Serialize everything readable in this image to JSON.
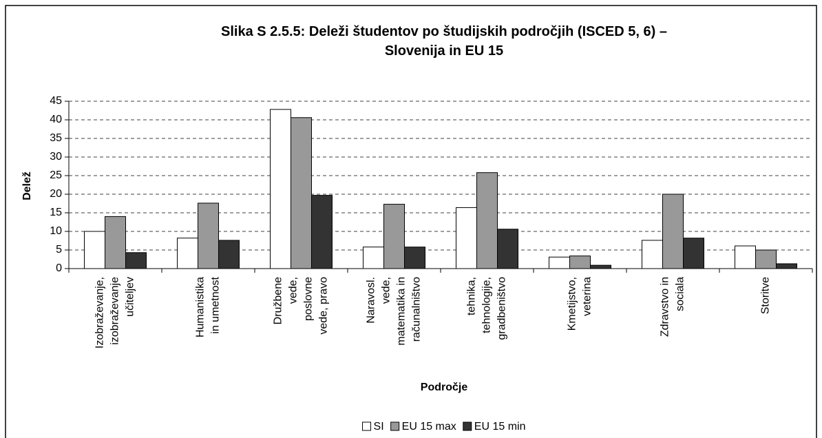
{
  "chart_data": {
    "type": "bar",
    "title": "Slika S 2.5.5: Deleži študentov po študijskih področjih (ISCED 5, 6) –\nSlovenija in EU 15",
    "x_label": "Področje",
    "y_label": "Delež",
    "categories": [
      "Izobraževanje,\nizobraževanje\nučiteljev",
      "Humanistika\nin umetnost",
      "Družbene\nvede,\nposlovne\nvede, pravo",
      "Naravosl.\nvede,\nmatematika in\nračunalništvo",
      "tehnika,\ntehnologije,\ngradbeništvo",
      "Kmetijstvo,\nveterina",
      "Zdravstvo in\nsociala",
      "Storitve"
    ],
    "series": [
      {
        "name": "SI",
        "color": "#ffffff",
        "values": [
          10,
          8.2,
          42.8,
          5.8,
          16.4,
          3.1,
          7.6,
          6.1
        ]
      },
      {
        "name": "EU 15 max",
        "color": "#999999",
        "values": [
          14,
          17.6,
          40.6,
          17.3,
          25.8,
          3.4,
          20.0,
          5.0
        ]
      },
      {
        "name": "EU 15 min",
        "color": "#333333",
        "values": [
          4.3,
          7.6,
          19.7,
          5.8,
          10.6,
          0.9,
          8.2,
          1.3
        ]
      }
    ],
    "ylim": [
      0,
      45
    ],
    "yticks": [
      0,
      5,
      10,
      15,
      20,
      25,
      30,
      35,
      40,
      45
    ],
    "grid": true,
    "legend": "bottom"
  }
}
